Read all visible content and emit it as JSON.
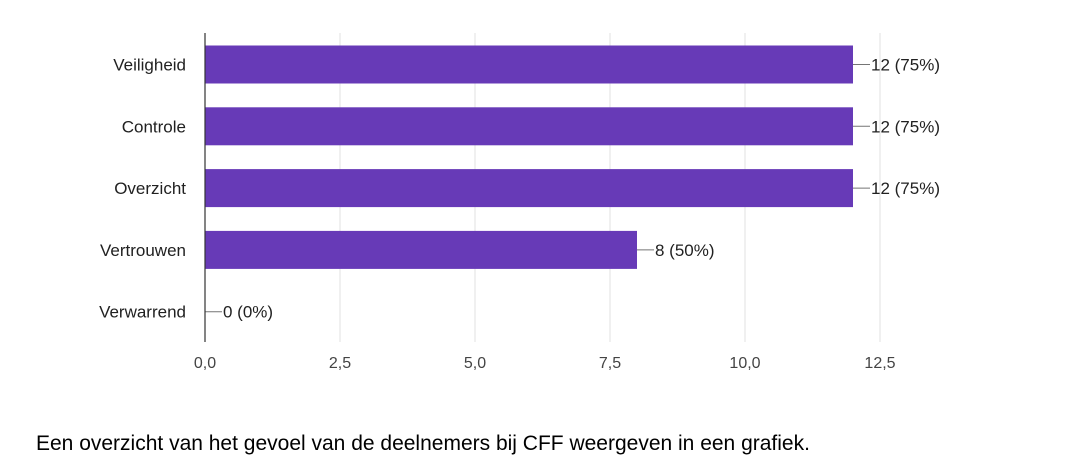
{
  "chart_data": {
    "type": "bar",
    "orientation": "horizontal",
    "categories": [
      "Veiligheid",
      "Controle",
      "Overzicht",
      "Vertrouwen",
      "Verwarrend"
    ],
    "values": [
      12,
      12,
      12,
      8,
      0
    ],
    "data_labels": [
      "12 (75%)",
      "12 (75%)",
      "12 (75%)",
      "8 (50%)",
      "0 (0%)"
    ],
    "xlim": [
      0,
      12.5
    ],
    "xticks": [
      0,
      2.5,
      5,
      7.5,
      10,
      12.5
    ],
    "xtick_labels": [
      "0,0",
      "2,5",
      "5,0",
      "7,5",
      "10,0",
      "12,5"
    ],
    "grid": "vertical",
    "bar_color": "#673ab7"
  },
  "caption": "Een overzicht van het gevoel van de deelnemers bij CFF weergeven in een grafiek."
}
